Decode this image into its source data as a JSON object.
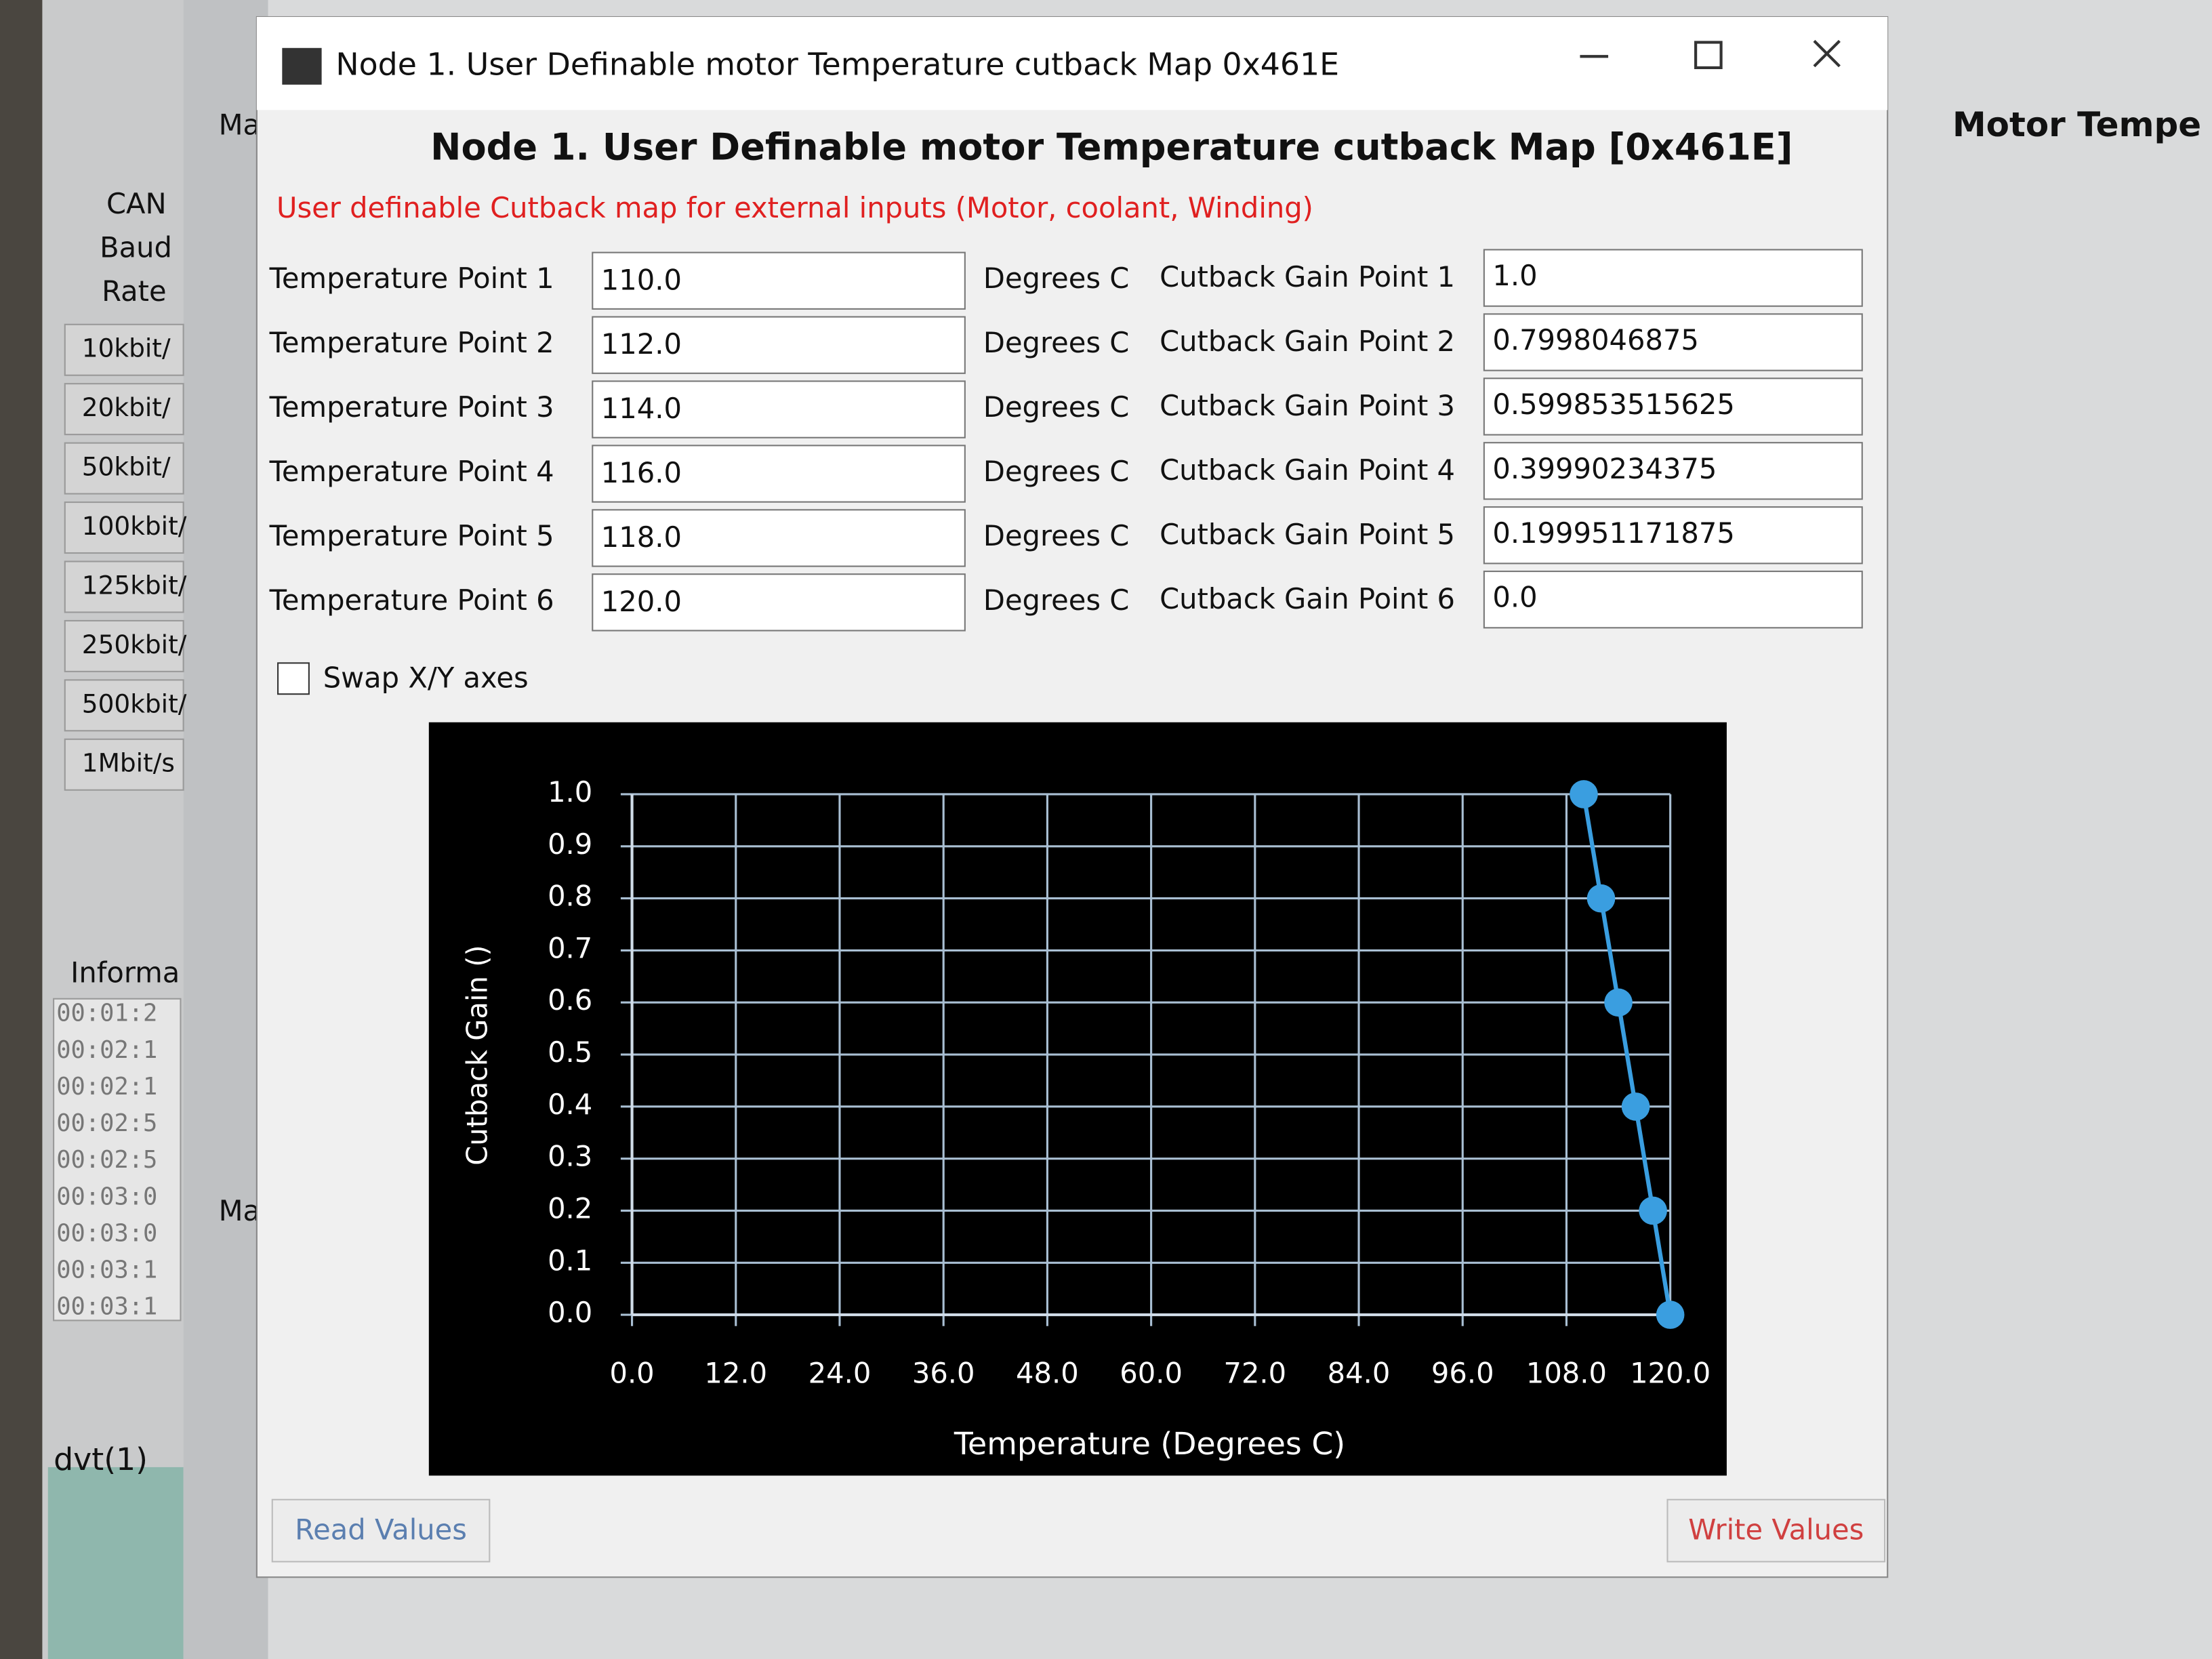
{
  "window_title": "Node 1. User Definable motor Temperature cutback Map 0x461E",
  "heading": "Node 1. User Definable motor Temperature cutback Map [0x461E]",
  "description": "User definable Cutback map for external inputs (Motor, coolant, Winding)",
  "rows": [
    {
      "label": "Temperature Point 1",
      "value": "110.0",
      "unit": "Degrees C",
      "gain_label": "Cutback Gain Point 1",
      "gain_value": "1.0"
    },
    {
      "label": "Temperature Point 2",
      "value": "112.0",
      "unit": "Degrees C",
      "gain_label": "Cutback Gain Point 2",
      "gain_value": "0.7998046875"
    },
    {
      "label": "Temperature Point 3",
      "value": "114.0",
      "unit": "Degrees C",
      "gain_label": "Cutback Gain Point 3",
      "gain_value": "0.599853515625"
    },
    {
      "label": "Temperature Point 4",
      "value": "116.0",
      "unit": "Degrees C",
      "gain_label": "Cutback Gain Point 4",
      "gain_value": "0.39990234375"
    },
    {
      "label": "Temperature Point 5",
      "value": "118.0",
      "unit": "Degrees C",
      "gain_label": "Cutback Gain Point 5",
      "gain_value": "0.199951171875"
    },
    {
      "label": "Temperature Point 6",
      "value": "120.0",
      "unit": "Degrees C",
      "gain_label": "Cutback Gain Point 6",
      "gain_value": "0.0"
    }
  ],
  "swap_label": "Swap X/Y axes",
  "chart_data": {
    "type": "line",
    "x_label": "Temperature  (Degrees C)",
    "y_label": "Cutback Gain  ()",
    "x": [
      110,
      112,
      114,
      116,
      118,
      120
    ],
    "values": [
      1.0,
      0.7998046875,
      0.599853515625,
      0.39990234375,
      0.199951171875,
      0.0
    ],
    "color": "#3a9ee0",
    "xlim": [
      0,
      120
    ],
    "ylim": [
      0,
      1
    ],
    "xticks": [
      {
        "value": 0,
        "label": "0.0"
      },
      {
        "value": 12,
        "label": "12.0"
      },
      {
        "value": 24,
        "label": "24.0"
      },
      {
        "value": 36,
        "label": "36.0"
      },
      {
        "value": 48,
        "label": "48.0"
      },
      {
        "value": 60,
        "label": "60.0"
      },
      {
        "value": 72,
        "label": "72.0"
      },
      {
        "value": 84,
        "label": "84.0"
      },
      {
        "value": 96,
        "label": "96.0"
      },
      {
        "value": 108,
        "label": "108.0"
      },
      {
        "value": 120,
        "label": "120.0"
      }
    ],
    "yticks": [
      {
        "value": 0,
        "label": "0.0"
      },
      0.1,
      0.2,
      0.3,
      0.4,
      0.5,
      0.6,
      0.7,
      0.8,
      0.9,
      {
        "value": 1,
        "label": "1.0"
      }
    ],
    "grid": true
  },
  "buttons": {
    "read": "Read Values",
    "write": "Write Values"
  },
  "background": {
    "left_labels": [
      "CAN",
      "Baud",
      "Rate"
    ],
    "baud_rates": [
      "10kbit/",
      "20kbit/",
      "50kbit/",
      "100kbit/",
      "125kbit/",
      "250kbit/",
      "500kbit/",
      "1Mbit/s"
    ],
    "info_label": "Informa",
    "log_times": [
      "00:01:2",
      "00:02:1",
      "00:02:1",
      "00:02:5",
      "00:02:5",
      "00:03:0",
      "00:03:0",
      "00:03:1",
      "00:03:1"
    ],
    "device": "dvt(1)",
    "right_title": "Motor Tempe",
    "tab_labels": [
      "Ma",
      "Ma"
    ]
  }
}
